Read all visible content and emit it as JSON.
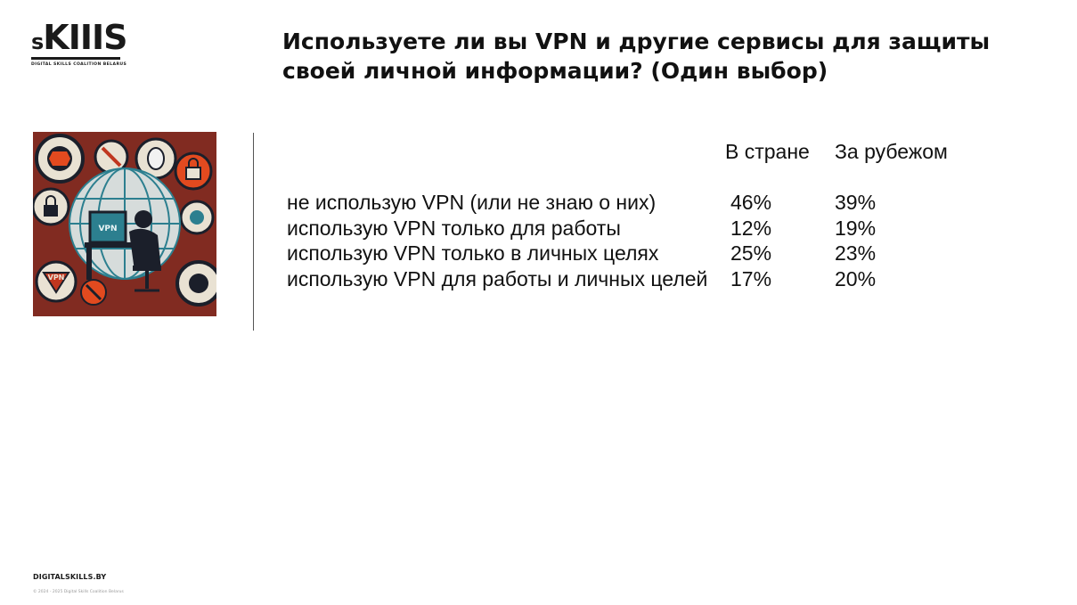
{
  "logo": {
    "word_small": "s",
    "word_big": "KIIIS",
    "tagline": "DIGITAL SKILLS COALITION BELARUS"
  },
  "title": "Используете ли вы VPN и другие сервисы для защиты своей личной информации? (Один выбор)",
  "illustration": {
    "screen_label": "VPN",
    "badge_label": "VPN"
  },
  "table": {
    "columns": [
      "В стране",
      "За рубежом"
    ],
    "rows": [
      {
        "label": "не использую VPN (или не знаю о них)",
        "domestic": "46%",
        "abroad": "39%"
      },
      {
        "label": "использую VPN только для работы",
        "domestic": "12%",
        "abroad": "19%"
      },
      {
        "label": "использую VPN только в личных целях",
        "domestic": "25%",
        "abroad": "23%"
      },
      {
        "label": "использую VPN для работы и личных целей",
        "domestic": "17%",
        "abroad": "20%"
      }
    ]
  },
  "footer": {
    "site": "DIGITALSKILLS.BY",
    "copyright": "© 2024 - 2025 Digital Skills Coalition Belarus"
  },
  "colors": {
    "text": "#111111",
    "illustration_bg": "#c0371f",
    "illustration_dark": "#1b1f2a",
    "illustration_teal": "#2c7f8f"
  }
}
